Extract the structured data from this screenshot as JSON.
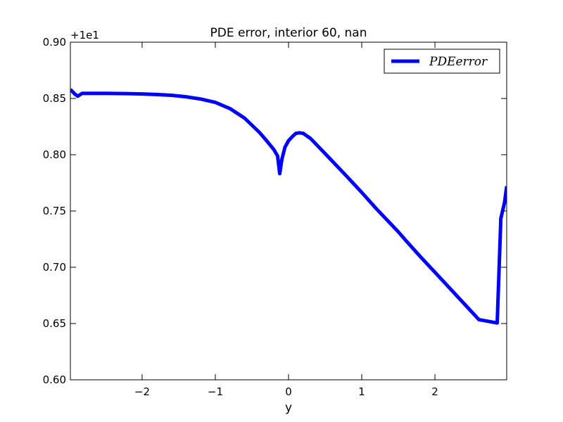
{
  "chart_data": {
    "type": "line",
    "title": "PDE error, interior 60, nan",
    "xlabel": "y",
    "ylabel": "",
    "offset_label": "+1e1",
    "xlim": [
      -2.98,
      2.98
    ],
    "ylim": [
      0.6,
      0.9
    ],
    "xticks": [
      -2,
      -1,
      0,
      1,
      2
    ],
    "xtick_labels": [
      "−2",
      "−1",
      "0",
      "1",
      "2"
    ],
    "yticks": [
      0.6,
      0.65,
      0.7,
      0.75,
      0.8,
      0.85,
      0.9
    ],
    "ytick_labels": [
      "0.60",
      "0.65",
      "0.70",
      "0.75",
      "0.80",
      "0.85",
      "0.90"
    ],
    "grid": false,
    "legend_position": "top-right",
    "series": [
      {
        "name": "PDEerror",
        "color": "#0000ff",
        "x": [
          -2.98,
          -2.92,
          -2.88,
          -2.82,
          -2.7,
          -2.5,
          -2.2,
          -2.0,
          -1.8,
          -1.6,
          -1.4,
          -1.2,
          -1.0,
          -0.8,
          -0.6,
          -0.4,
          -0.3,
          -0.2,
          -0.15,
          -0.12,
          -0.09,
          -0.05,
          0.0,
          0.05,
          0.1,
          0.15,
          0.2,
          0.3,
          0.5,
          0.8,
          1.0,
          1.2,
          1.5,
          1.6,
          1.8,
          2.0,
          2.2,
          2.4,
          2.6,
          2.85,
          2.9,
          2.95,
          2.98
        ],
        "y": [
          0.858,
          0.854,
          0.852,
          0.8545,
          0.8545,
          0.8545,
          0.8543,
          0.854,
          0.8535,
          0.8528,
          0.8515,
          0.8495,
          0.8465,
          0.841,
          0.8325,
          0.82,
          0.8125,
          0.8045,
          0.799,
          0.7832,
          0.796,
          0.8065,
          0.8125,
          0.816,
          0.819,
          0.8195,
          0.819,
          0.8145,
          0.801,
          0.7805,
          0.7665,
          0.752,
          0.7315,
          0.724,
          0.7095,
          0.6955,
          0.6815,
          0.6675,
          0.6535,
          0.6505,
          0.7435,
          0.7575,
          0.772
        ]
      }
    ]
  }
}
